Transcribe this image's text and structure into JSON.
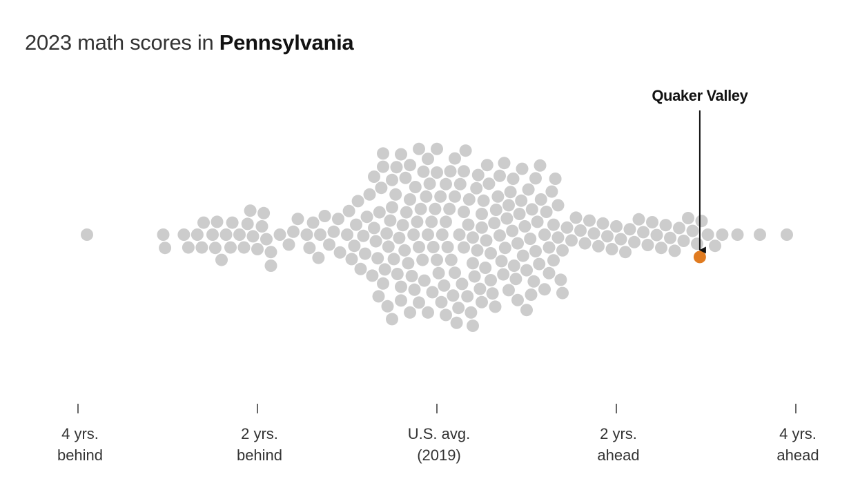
{
  "title": {
    "prefix": "2023 math scores in",
    "state": "Pennsylvania"
  },
  "colors": {
    "dot": "#cccccc",
    "highlight": "#e07b20",
    "text": "#333333",
    "annotation": "#121212"
  },
  "chart_data": {
    "type": "scatter",
    "subtype": "beeswarm",
    "title": "2023 math scores in Pennsylvania",
    "x_unit": "grade levels relative to 2019 U.S. average",
    "xlim": [
      -4,
      4
    ],
    "ticks": [
      {
        "value": -4,
        "lines": [
          "4 yrs.",
          "behind"
        ]
      },
      {
        "value": -2,
        "lines": [
          "2 yrs.",
          "behind"
        ]
      },
      {
        "value": 0,
        "lines": [
          "U.S. avg.",
          "(2019)"
        ]
      },
      {
        "value": 2,
        "lines": [
          "2 yrs.",
          "ahead"
        ]
      },
      {
        "value": 4,
        "lines": [
          "4 yrs.",
          "ahead"
        ]
      }
    ],
    "highlight": {
      "name": "Quaker Valley",
      "x": 2.93
    },
    "districts_x": [
      -3.9,
      -3.05,
      -3.03,
      -2.82,
      -2.77,
      -2.67,
      -2.62,
      -2.6,
      -2.5,
      -2.47,
      -2.45,
      -2.4,
      -2.35,
      -2.3,
      -2.28,
      -2.2,
      -2.15,
      -2.11,
      -2.08,
      -2.05,
      -2.0,
      -1.95,
      -1.93,
      -1.9,
      -1.85,
      -1.85,
      -1.75,
      -1.65,
      -1.6,
      -1.55,
      -1.45,
      -1.42,
      -1.38,
      -1.32,
      -1.3,
      -1.25,
      -1.2,
      -1.15,
      -1.1,
      -1.08,
      -1.0,
      -0.98,
      -0.95,
      -0.92,
      -0.9,
      -0.88,
      -0.85,
      -0.82,
      -0.8,
      -0.78,
      -0.75,
      -0.72,
      -0.7,
      -0.68,
      -0.66,
      -0.64,
      -0.62,
      -0.6,
      -0.58,
      -0.56,
      -0.54,
      -0.52,
      -0.5,
      -0.48,
      -0.46,
      -0.44,
      -0.42,
      -0.4,
      -0.38,
      -0.36,
      -0.34,
      -0.32,
      -0.3,
      -0.28,
      -0.26,
      -0.24,
      -0.22,
      -0.2,
      -0.18,
      -0.16,
      -0.14,
      -0.12,
      -0.1,
      -0.08,
      -0.06,
      -0.04,
      -0.02,
      0.0,
      0.02,
      0.04,
      0.06,
      0.08,
      0.1,
      0.12,
      0.14,
      0.16,
      -0.7,
      -0.65,
      -0.6,
      -0.55,
      -0.5,
      -0.45,
      -0.4,
      -0.35,
      -0.3,
      -0.25,
      -0.2,
      -0.15,
      -0.1,
      -0.05,
      0.0,
      0.05,
      0.1,
      0.15,
      0.2,
      0.25,
      0.3,
      0.35,
      0.4,
      0.45,
      0.5,
      0.55,
      -0.6,
      -0.5,
      -0.4,
      -0.3,
      -0.2,
      -0.1,
      0.0,
      0.1,
      0.2,
      0.3,
      0.4,
      0.5,
      0.6,
      0.18,
      0.2,
      0.22,
      0.24,
      0.26,
      0.28,
      0.3,
      0.32,
      0.34,
      0.36,
      0.38,
      0.4,
      0.42,
      0.44,
      0.46,
      0.48,
      0.5,
      0.52,
      0.54,
      0.56,
      0.58,
      0.6,
      0.62,
      0.64,
      0.66,
      0.68,
      0.7,
      0.72,
      0.74,
      0.76,
      0.78,
      0.8,
      0.82,
      0.84,
      0.86,
      0.88,
      0.9,
      0.92,
      0.94,
      0.96,
      0.98,
      1.0,
      1.02,
      1.04,
      1.06,
      1.08,
      1.1,
      1.12,
      1.14,
      1.16,
      0.65,
      0.7,
      0.75,
      0.8,
      0.85,
      0.9,
      0.95,
      1.0,
      1.05,
      1.1,
      1.15,
      1.2,
      1.25,
      1.3,
      1.35,
      1.4,
      1.2,
      1.22,
      1.25,
      1.28,
      1.3,
      1.32,
      1.35,
      1.38,
      1.4,
      1.45,
      1.5,
      1.55,
      1.6,
      1.65,
      1.7,
      1.75,
      1.8,
      1.85,
      1.9,
      1.95,
      2.0,
      2.05,
      2.1,
      2.15,
      2.2,
      2.25,
      2.3,
      2.35,
      2.4,
      2.45,
      2.5,
      2.55,
      2.6,
      2.65,
      2.7,
      2.75,
      2.8,
      2.85,
      2.9,
      2.95,
      3.02,
      3.1,
      3.18,
      3.35,
      3.6,
      3.9
    ]
  }
}
